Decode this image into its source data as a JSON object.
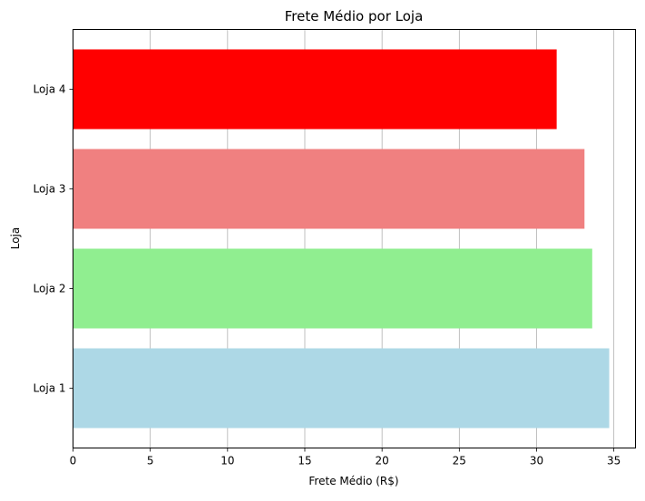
{
  "chart_data": {
    "type": "bar",
    "orientation": "horizontal",
    "title": "Frete Médio por Loja",
    "xlabel": "Frete Médio (R$)",
    "ylabel": "Loja",
    "categories": [
      "Loja 1",
      "Loja 2",
      "Loja 3",
      "Loja 4"
    ],
    "values": [
      34.7,
      33.6,
      33.1,
      31.3
    ],
    "colors": [
      "#add8e6",
      "#90ee90",
      "#f08080",
      "#ff0000"
    ],
    "xlim": [
      0,
      36.4
    ],
    "xticks": [
      0,
      5,
      10,
      15,
      20,
      25,
      30,
      35
    ],
    "xtick_labels": [
      "0",
      "5",
      "10",
      "15",
      "20",
      "25",
      "30",
      "35"
    ],
    "grid": {
      "x": true,
      "y": false,
      "color": "#b0b0b0"
    }
  }
}
